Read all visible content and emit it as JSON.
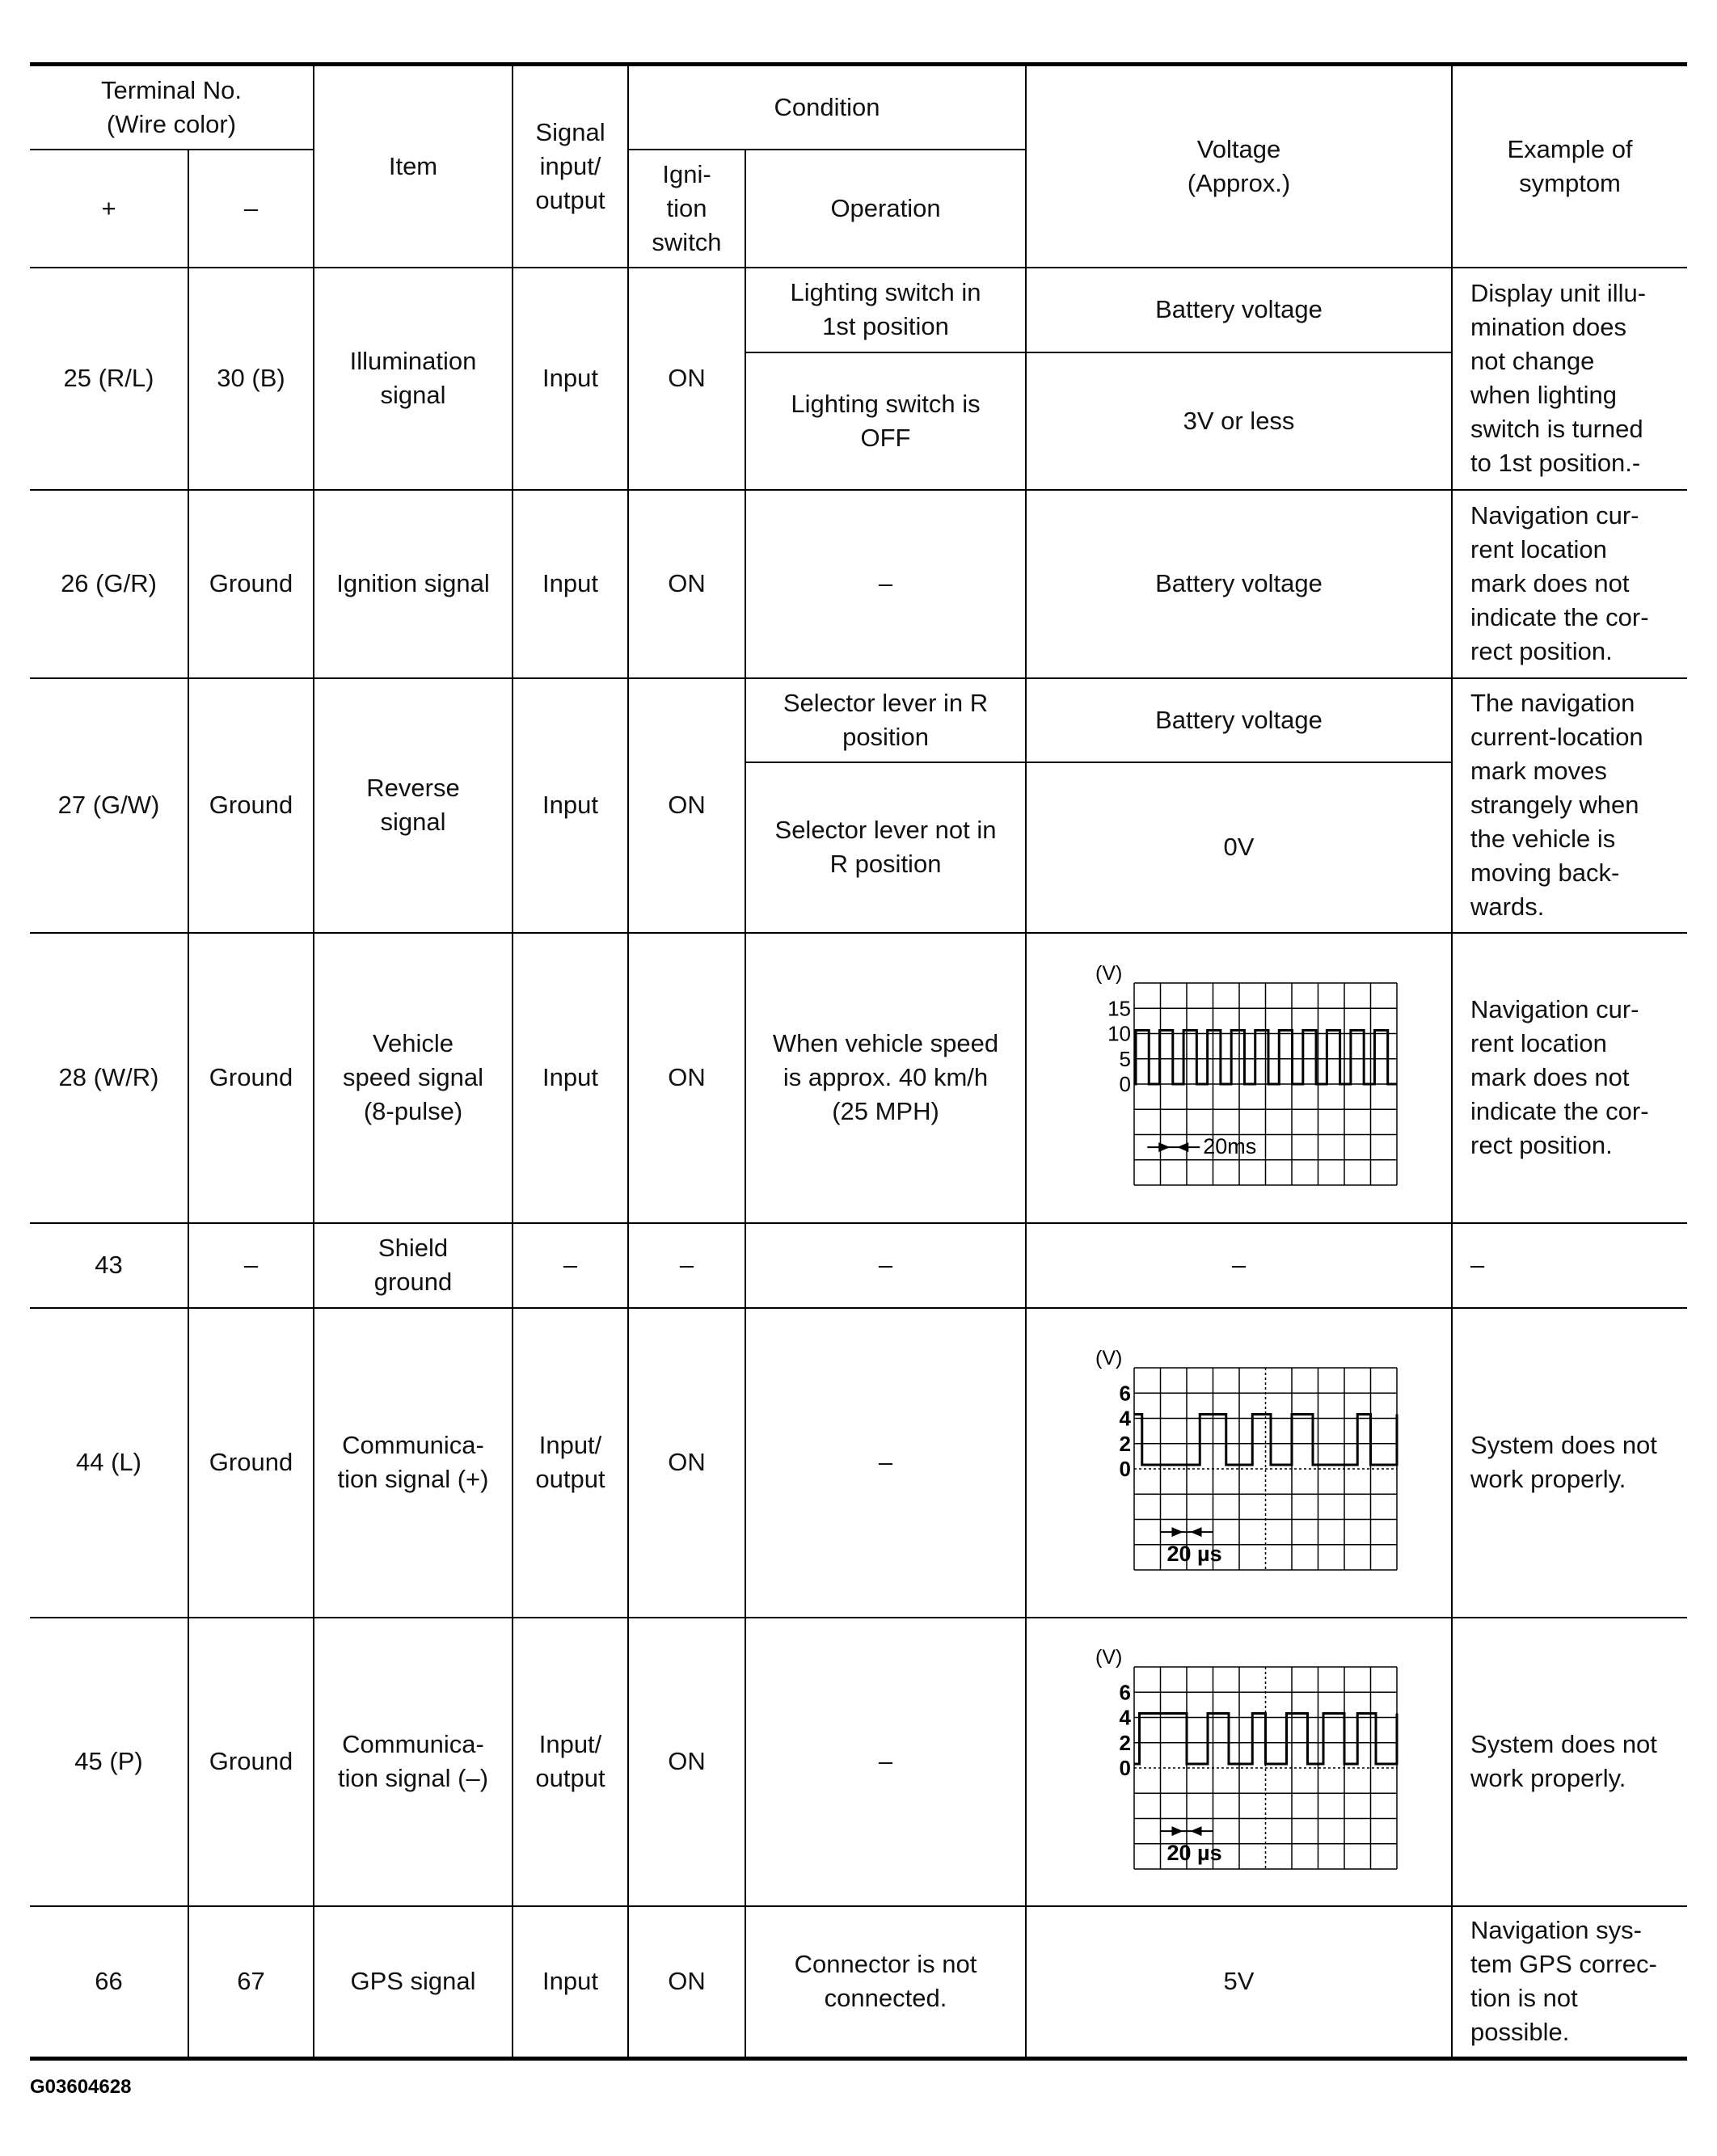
{
  "header": {
    "terminal_no": "Terminal No.\n(Wire color)",
    "plus": "+",
    "minus": "–",
    "item": "Item",
    "signal": "Signal\ninput/\noutput",
    "condition": "Condition",
    "ignition": "Igni-\ntion\nswitch",
    "operation": "Operation",
    "voltage": "Voltage\n(Approx.)",
    "symptom": "Example of\nsymptom"
  },
  "rows": [
    {
      "plus": "25 (R/L)",
      "minus": "30 (B)",
      "item": "Illumination\nsignal",
      "signal": "Input",
      "ignition": "ON",
      "conditions": [
        {
          "operation": "Lighting switch in\n1st position",
          "voltage": "Battery voltage"
        },
        {
          "operation": "Lighting switch is\nOFF",
          "voltage": "3V or less"
        }
      ],
      "symptom": "Display unit illu-\nmination does\nnot change\nwhen lighting\nswitch is turned\nto 1st position.-"
    },
    {
      "plus": "26 (G/R)",
      "minus": "Ground",
      "item": "Ignition signal",
      "signal": "Input",
      "ignition": "ON",
      "conditions": [
        {
          "operation": "–",
          "voltage": "Battery voltage"
        }
      ],
      "symptom": "Navigation cur-\nrent location\nmark does not\nindicate the cor-\nrect position."
    },
    {
      "plus": "27 (G/W)",
      "minus": "Ground",
      "item": "Reverse\nsignal",
      "signal": "Input",
      "ignition": "ON",
      "conditions": [
        {
          "operation": "Selector lever in R\nposition",
          "voltage": "Battery voltage"
        },
        {
          "operation": "Selector lever not in\nR position",
          "voltage": "0V"
        }
      ],
      "symptom": "The navigation\ncurrent-location\nmark moves\nstrangely when\nthe vehicle is\nmoving back-\nwards."
    },
    {
      "plus": "28 (W/R)",
      "minus": "Ground",
      "item": "Vehicle\nspeed signal\n(8-pulse)",
      "signal": "Input",
      "ignition": "ON",
      "conditions": [
        {
          "operation": "When vehicle speed\nis approx. 40 km/h\n(25 MPH)",
          "voltage": {
            "unit": "(V)",
            "ticks": [
              "15",
              "10",
              "5",
              "0"
            ],
            "period": "20ms"
          }
        }
      ],
      "symptom": "Navigation cur-\nrent location\nmark does not\nindicate the cor-\nrect position."
    },
    {
      "plus": "43",
      "minus": "–",
      "item": "Shield\nground",
      "signal": "–",
      "ignition": "–",
      "conditions": [
        {
          "operation": "–",
          "voltage": "–"
        }
      ],
      "symptom": "–"
    },
    {
      "plus": "44 (L)",
      "minus": "Ground",
      "item": "Communica-\ntion signal (+)",
      "signal": "Input/\noutput",
      "ignition": "ON",
      "conditions": [
        {
          "operation": "–",
          "voltage": {
            "unit": "(V)",
            "ticks": [
              "6",
              "4",
              "2",
              "0"
            ],
            "period": "20 µs"
          }
        }
      ],
      "symptom": "System does not\nwork properly."
    },
    {
      "plus": "45 (P)",
      "minus": "Ground",
      "item": "Communica-\ntion signal (–)",
      "signal": "Input/\noutput",
      "ignition": "ON",
      "conditions": [
        {
          "operation": "–",
          "voltage": {
            "unit": "(V)",
            "ticks": [
              "6",
              "4",
              "2",
              "0"
            ],
            "period": "20 µs"
          }
        }
      ],
      "symptom": "System does not\nwork properly."
    },
    {
      "plus": "66",
      "minus": "67",
      "item": "GPS signal",
      "signal": "Input",
      "ignition": "ON",
      "conditions": [
        {
          "operation": "Connector is not\nconnected.",
          "voltage": "5V"
        }
      ],
      "symptom": "Navigation sys-\ntem GPS correc-\ntion is not\npossible."
    }
  ],
  "footer": "G03604628"
}
